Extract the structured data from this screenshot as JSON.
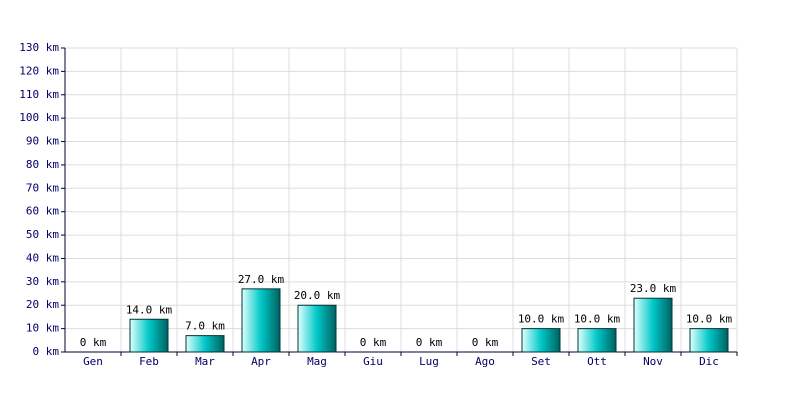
{
  "chart_data": {
    "type": "bar",
    "categories": [
      "Gen",
      "Feb",
      "Mar",
      "Apr",
      "Mag",
      "Giu",
      "Lug",
      "Ago",
      "Set",
      "Ott",
      "Nov",
      "Dic"
    ],
    "values": [
      0,
      14,
      7,
      27,
      20,
      0,
      0,
      0,
      10,
      10,
      23,
      10
    ],
    "value_labels": [
      "0 km",
      "14.0 km",
      "7.0 km",
      "27.0 km",
      "20.0 km",
      "0 km",
      "0 km",
      "0 km",
      "10.0 km",
      "10.0 km",
      "23.0 km",
      "10.0 km"
    ],
    "color": "#00c8c8",
    "ylim": [
      0,
      130
    ],
    "yticks": [
      {
        "value": 0,
        "label": "0 km"
      },
      {
        "value": 10,
        "label": "10 km"
      },
      {
        "value": 20,
        "label": "20 km"
      },
      {
        "value": 30,
        "label": "30 km"
      },
      {
        "value": 40,
        "label": "40 km"
      },
      {
        "value": 50,
        "label": "50 km"
      },
      {
        "value": 60,
        "label": "60 km"
      },
      {
        "value": 70,
        "label": "70 km"
      },
      {
        "value": 80,
        "label": "80 km"
      },
      {
        "value": 90,
        "label": "90 km"
      },
      {
        "value": 100,
        "label": "100 km"
      },
      {
        "value": 110,
        "label": "110 km"
      },
      {
        "value": 120,
        "label": "120 km"
      },
      {
        "value": 130,
        "label": "130 km"
      }
    ],
    "grid": true
  }
}
